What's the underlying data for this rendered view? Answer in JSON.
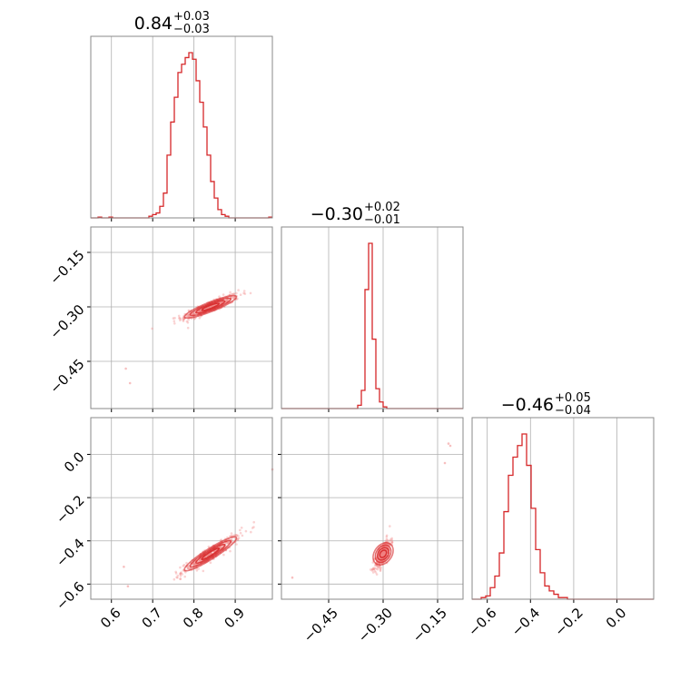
{
  "colors": {
    "hist": "#d62728",
    "scatter": "#f08080",
    "grid": "#b0b0b0",
    "frame": "#888888"
  },
  "chart_data": {
    "type": "corner",
    "grid": true,
    "parameters": [
      {
        "range": [
          0.55,
          0.99
        ],
        "ticks": [
          0.6,
          0.7,
          0.8,
          0.9
        ],
        "tick_labels": [
          "0.6",
          "0.7",
          "0.8",
          "0.9"
        ],
        "title": {
          "median": "0.84",
          "plus": "+0.03",
          "minus": "−0.03"
        }
      },
      {
        "range": [
          -0.58,
          -0.08
        ],
        "ticks": [
          -0.45,
          -0.3,
          -0.15
        ],
        "tick_labels": [
          "−0.45",
          "−0.30",
          "−0.15"
        ],
        "title": {
          "median": "−0.30",
          "plus": "+0.02",
          "minus": "−0.01"
        }
      },
      {
        "range": [
          -0.67,
          0.17
        ],
        "ticks": [
          -0.6,
          -0.4,
          -0.2,
          0.0
        ],
        "tick_labels": [
          "−0.6",
          "−0.4",
          "−0.2",
          "0.0"
        ],
        "title": {
          "median": "−0.46",
          "plus": "+0.05",
          "minus": "−0.04"
        }
      }
    ],
    "histograms": [
      {
        "param": 0,
        "bins_x": [
          0.55,
          0.99
        ],
        "ymax": 1.0,
        "counts": [
          0,
          0,
          0.005,
          0,
          0,
          0.005,
          0,
          0,
          0,
          0,
          0,
          0,
          0,
          0,
          0,
          0,
          0.01,
          0.02,
          0.03,
          0.07,
          0.15,
          0.38,
          0.58,
          0.73,
          0.88,
          0.93,
          0.97,
          1.0,
          0.96,
          0.83,
          0.7,
          0.55,
          0.38,
          0.22,
          0.12,
          0.05,
          0.02,
          0.01,
          0,
          0,
          0,
          0,
          0,
          0,
          0,
          0,
          0,
          0,
          0,
          0.005
        ]
      },
      {
        "param": 1,
        "bins_x": [
          -0.58,
          -0.08
        ],
        "ymax": 1.0,
        "counts": [
          0,
          0,
          0,
          0,
          0,
          0,
          0,
          0,
          0,
          0,
          0,
          0,
          0,
          0,
          0,
          0,
          0,
          0,
          0,
          0,
          0,
          0.02,
          0.11,
          0.72,
          1.0,
          0.42,
          0.12,
          0.04,
          0.01,
          0,
          0,
          0,
          0,
          0,
          0,
          0,
          0,
          0,
          0,
          0,
          0,
          0,
          0,
          0,
          0,
          0,
          0,
          0,
          0,
          0
        ]
      },
      {
        "param": 2,
        "bins_x": [
          -0.67,
          0.17
        ],
        "ymax": 1.0,
        "counts": [
          0,
          0,
          0.01,
          0.02,
          0.07,
          0.14,
          0.28,
          0.53,
          0.75,
          0.86,
          0.93,
          1.0,
          0.81,
          0.55,
          0.3,
          0.16,
          0.08,
          0.05,
          0.03,
          0.01,
          0.01,
          0,
          0,
          0,
          0,
          0,
          0,
          0,
          0,
          0,
          0,
          0,
          0,
          0,
          0,
          0,
          0,
          0,
          0,
          0
        ]
      }
    ],
    "scatter_panels": [
      {
        "x_param": 0,
        "y_param": 1,
        "center": [
          0.84,
          -0.3
        ],
        "slope": 0.45,
        "sx": 0.035,
        "sy": 0.008,
        "outliers": [
          [
            0.635,
            -0.47
          ],
          [
            0.645,
            -0.51
          ]
        ]
      },
      {
        "x_param": 0,
        "y_param": 2,
        "center": [
          0.84,
          -0.46
        ],
        "slope": 1.2,
        "sx": 0.035,
        "sy": 0.015,
        "outliers": [
          [
            0.63,
            -0.52
          ],
          [
            0.64,
            -0.61
          ],
          [
            0.99,
            -0.07
          ]
        ]
      },
      {
        "x_param": 1,
        "y_param": 2,
        "center": [
          -0.3,
          -0.46
        ],
        "slope": 2.3,
        "sx": 0.011,
        "sy": 0.025,
        "outliers": [
          [
            -0.55,
            -0.57
          ],
          [
            -0.13,
            -0.04
          ],
          [
            -0.12,
            0.05
          ],
          [
            -0.115,
            0.04
          ]
        ]
      }
    ]
  }
}
